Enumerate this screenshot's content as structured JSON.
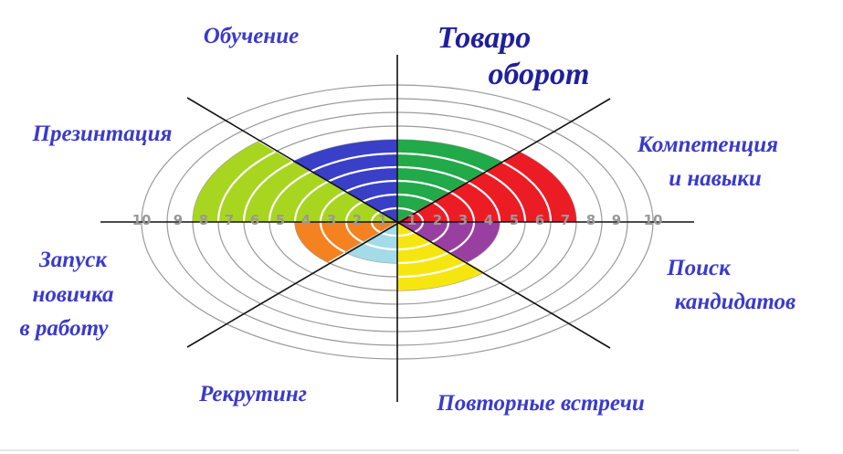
{
  "chart_data": {
    "type": "wheel",
    "categories": [
      [
        "Товаро",
        "оборот"
      ],
      [
        "Компетенция",
        "и навыки"
      ],
      [
        "Поиск",
        "кандидатов"
      ],
      [
        "Повторные встречи"
      ],
      [
        "Рекрутинг"
      ],
      [
        "Запуск",
        "новичка",
        "в работу"
      ],
      [
        "Презинтация"
      ],
      [
        "Обучение"
      ]
    ],
    "values": [
      6,
      7,
      4,
      5,
      3,
      4,
      8,
      6
    ],
    "colors": [
      "#22a94a",
      "#ec1c24",
      "#9a3fa2",
      "#f6e610",
      "#a3dbe9",
      "#f58220",
      "#a8d520",
      "#3a3fc7"
    ],
    "rlim": [
      0,
      10
    ],
    "scale_ticks": [
      1,
      2,
      3,
      4,
      5,
      6,
      7,
      8,
      9,
      10
    ]
  }
}
